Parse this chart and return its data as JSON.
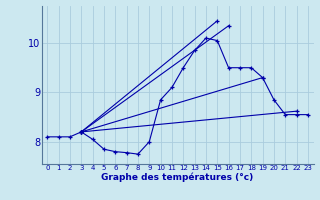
{
  "xlabel": "Graphe des températures (°c)",
  "background_color": "#cce8f0",
  "grid_color": "#aaccdd",
  "line_color": "#0000aa",
  "xlim": [
    -0.5,
    23.5
  ],
  "ylim": [
    7.55,
    10.75
  ],
  "yticks": [
    8,
    9,
    10
  ],
  "xticks": [
    0,
    1,
    2,
    3,
    4,
    5,
    6,
    7,
    8,
    9,
    10,
    11,
    12,
    13,
    14,
    15,
    16,
    17,
    18,
    19,
    20,
    21,
    22,
    23
  ],
  "lines": [
    {
      "x": [
        0,
        1,
        2,
        3,
        4,
        5,
        6,
        7,
        8,
        9,
        10,
        11,
        12,
        13,
        14,
        15,
        16,
        17,
        18,
        19,
        20,
        21,
        22,
        23
      ],
      "y": [
        8.1,
        8.1,
        8.1,
        8.2,
        8.05,
        7.85,
        7.8,
        7.78,
        7.75,
        8.0,
        8.85,
        9.1,
        9.5,
        9.85,
        10.1,
        10.05,
        9.5,
        9.5,
        9.5,
        9.3,
        8.85,
        8.55,
        8.55,
        8.55
      ],
      "marker": true
    },
    {
      "x": [
        3,
        15
      ],
      "y": [
        8.2,
        10.45
      ],
      "marker": true
    },
    {
      "x": [
        3,
        16
      ],
      "y": [
        8.2,
        10.35
      ],
      "marker": true
    },
    {
      "x": [
        3,
        19
      ],
      "y": [
        8.2,
        9.3
      ],
      "marker": true
    },
    {
      "x": [
        3,
        22
      ],
      "y": [
        8.2,
        8.62
      ],
      "marker": true
    }
  ]
}
